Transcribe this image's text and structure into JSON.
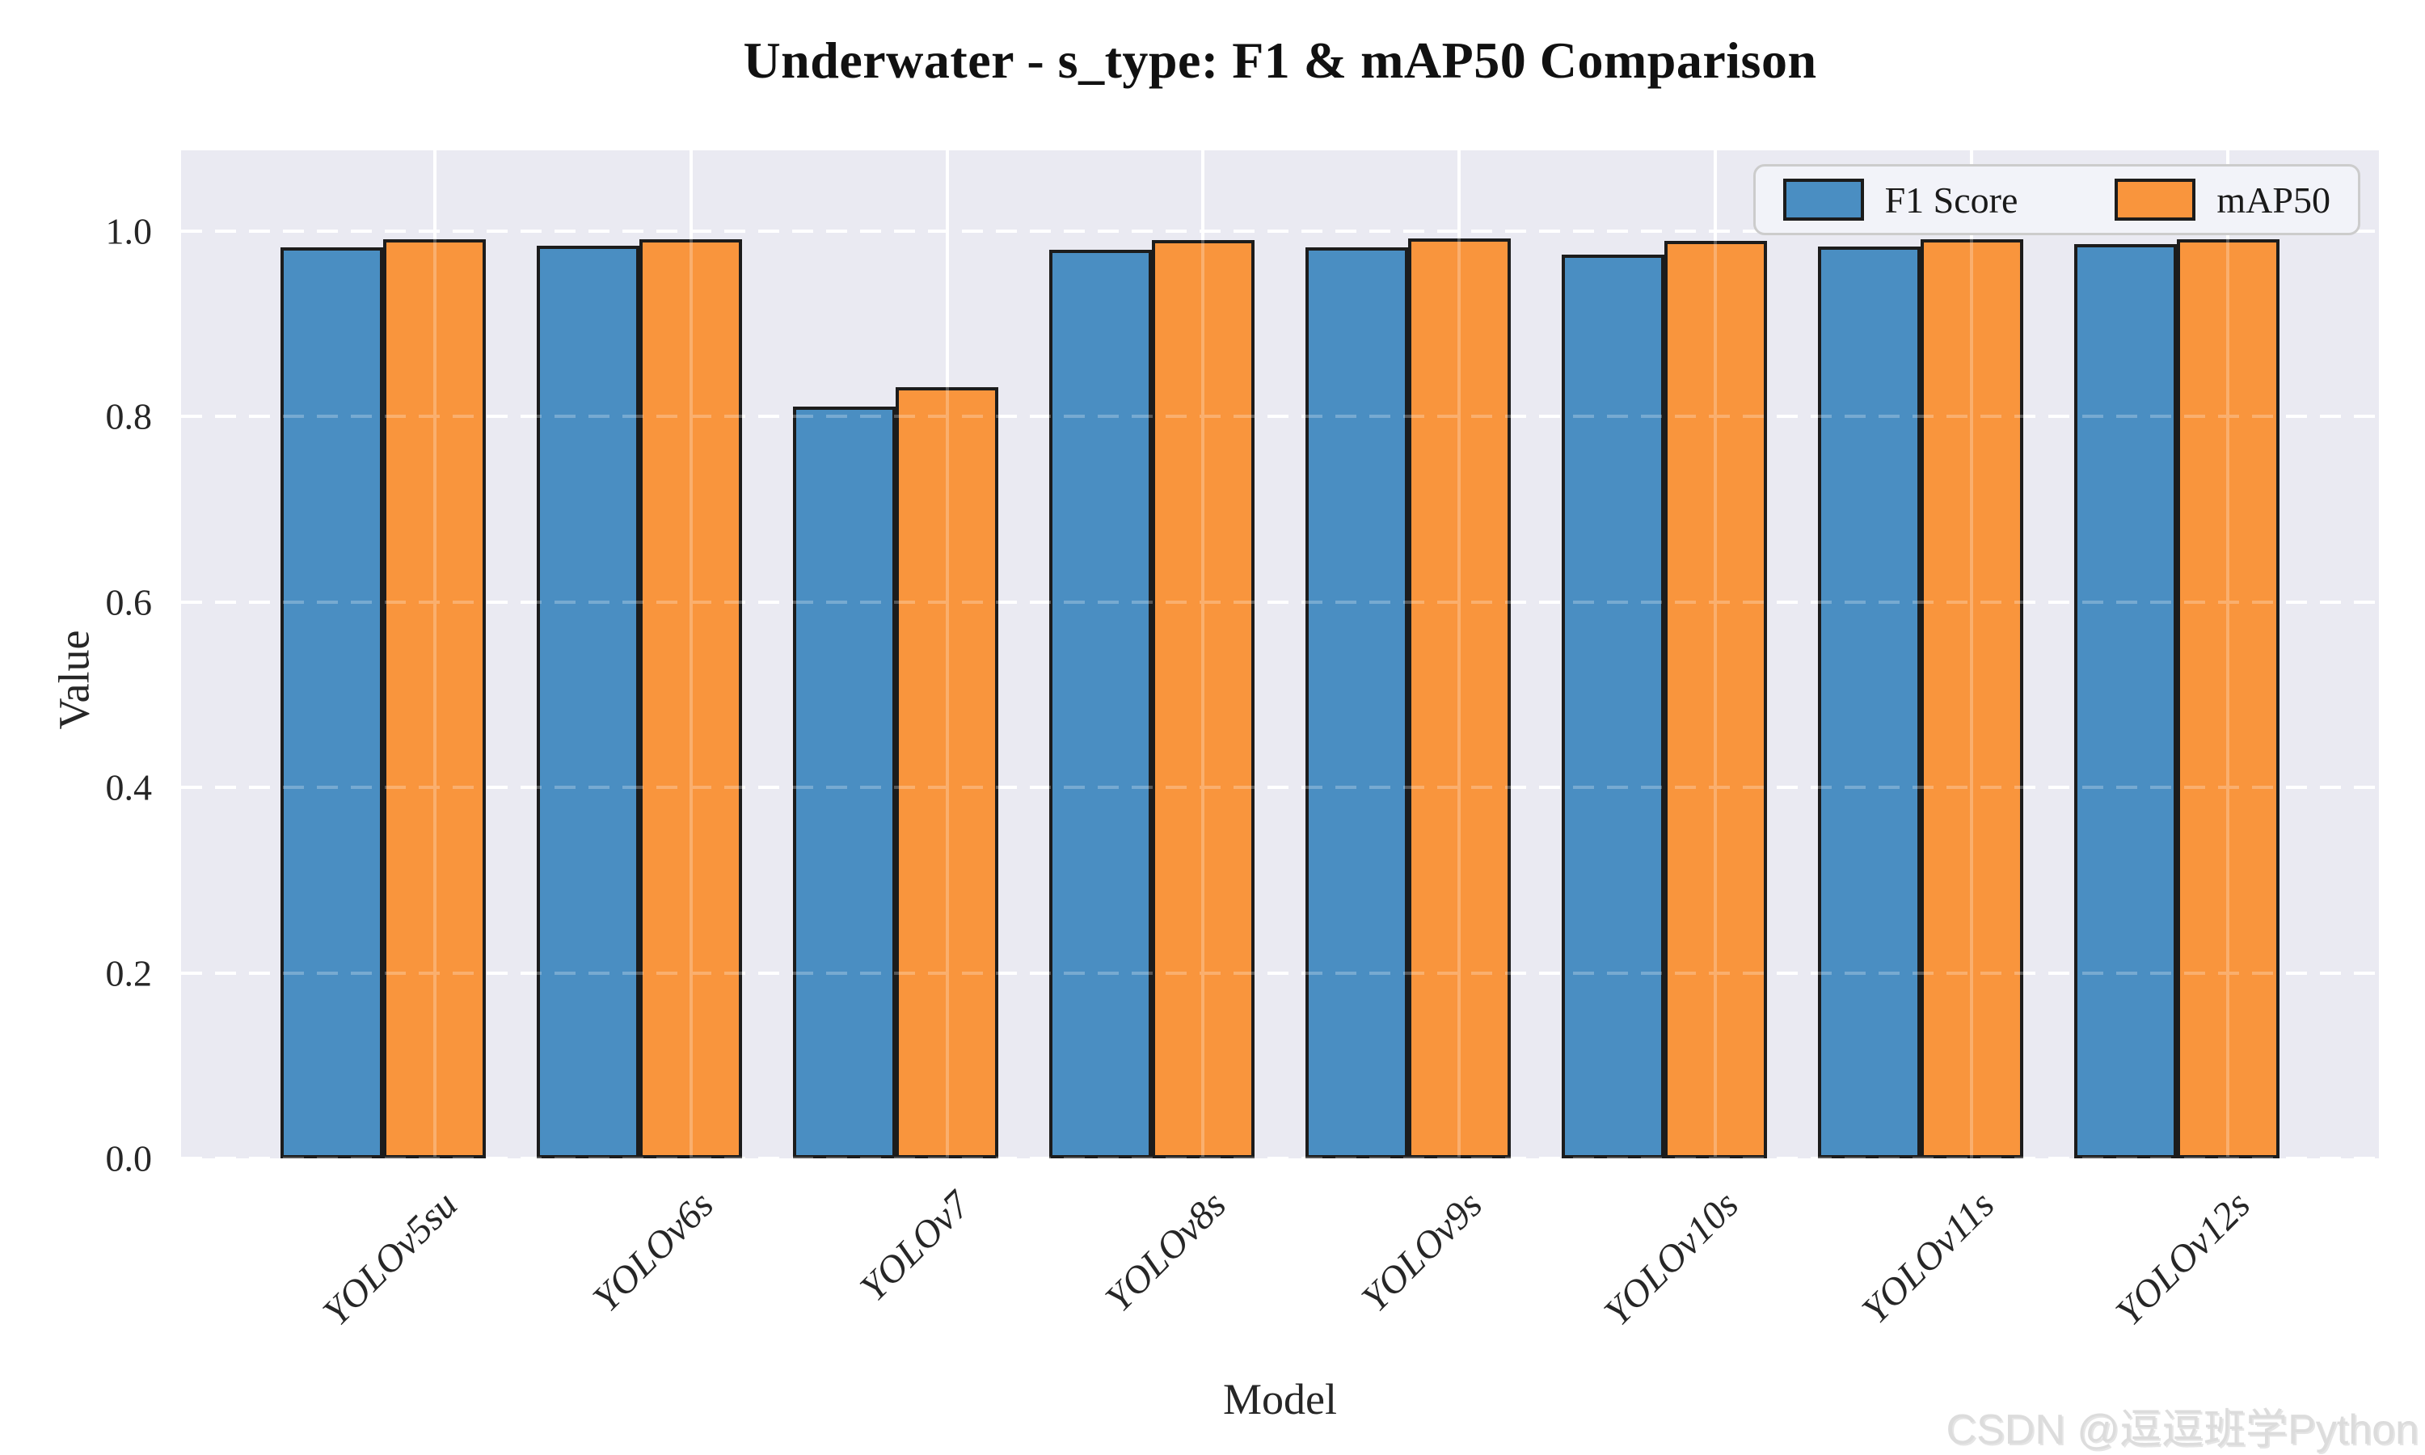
{
  "title": "Underwater - s_type: F1 & mAP50 Comparison",
  "watermark": "CSDN @逗逗班学Python",
  "axes": {
    "x_label": "Model",
    "y_label": "Value"
  },
  "legend": {
    "items": [
      {
        "label": "F1 Score",
        "color": "#4a8ec2"
      },
      {
        "label": "mAP50",
        "color": "#f9953d"
      }
    ]
  },
  "chart_data": {
    "type": "bar",
    "title": "Underwater - s_type: F1 & mAP50 Comparison",
    "xlabel": "Model",
    "ylabel": "Value",
    "categories": [
      "YOLOv5su",
      "YOLOv6s",
      "YOLOv7",
      "YOLOv8s",
      "YOLOv9s",
      "YOLOv10s",
      "YOLOv11s",
      "YOLOv12s"
    ],
    "series": [
      {
        "name": "F1 Score",
        "color": "#4a8ec2",
        "values": [
          0.982,
          0.984,
          0.811,
          0.98,
          0.982,
          0.975,
          0.983,
          0.986
        ]
      },
      {
        "name": "mAP50",
        "color": "#f9953d",
        "values": [
          0.991,
          0.991,
          0.832,
          0.99,
          0.992,
          0.989,
          0.991,
          0.991
        ]
      }
    ],
    "ylim": [
      0,
      1.087
    ],
    "yticks": [
      0.0,
      0.2,
      0.4,
      0.6,
      0.8,
      1.0
    ],
    "grid": {
      "horizontal": "dashed",
      "vertical": "solid",
      "color": "#ffffff"
    },
    "legend_position": "upper right",
    "bar_edge_color": "#1c1c1c",
    "plot_bg": "#eaeaf2",
    "layout_hints": {
      "first_tick_frac": 0.11537,
      "tick_step_frac": 0.11656,
      "bar_width_frac": 0.04664
    }
  }
}
